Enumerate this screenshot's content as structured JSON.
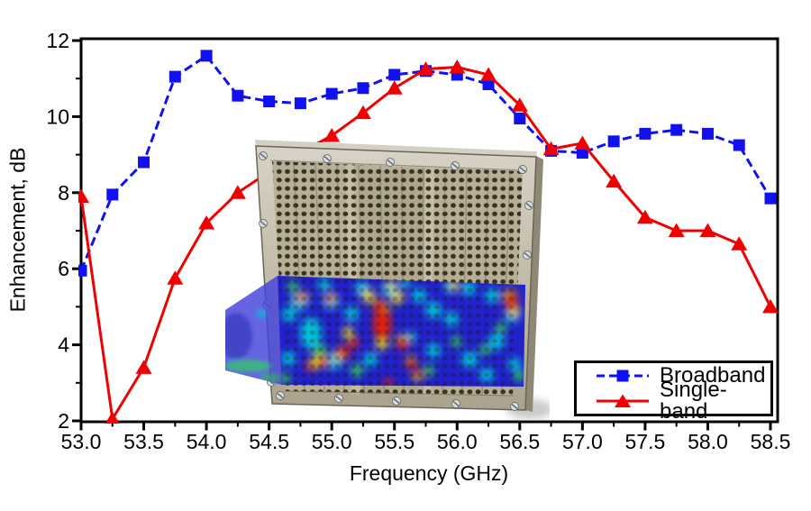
{
  "figure": {
    "background": "#ffffff",
    "text_color": "#000000"
  },
  "chart_data": {
    "type": "line",
    "title": "",
    "xlabel": "Frequency (GHz)",
    "ylabel": "Enhancement, dB",
    "xlim": [
      53.0,
      58.5
    ],
    "ylim": [
      2,
      12
    ],
    "x_major_ticks": [
      53.0,
      53.5,
      54.0,
      54.5,
      55.0,
      55.5,
      56.0,
      56.5,
      57.0,
      57.5,
      58.0,
      58.5
    ],
    "x_minor_step": 0.25,
    "y_major_ticks": [
      2,
      4,
      6,
      8,
      10,
      12
    ],
    "y_minor_step": 1,
    "grid": false,
    "frame_color": "#000000",
    "legend_position": "lower-right",
    "x": [
      53.0,
      53.25,
      53.5,
      53.75,
      54.0,
      54.25,
      54.5,
      54.75,
      55.0,
      55.25,
      55.5,
      55.75,
      56.0,
      56.25,
      56.5,
      56.75,
      57.0,
      57.25,
      57.5,
      57.75,
      58.0,
      58.25,
      58.5
    ],
    "series": [
      {
        "name": "Broadband",
        "color": "#1010F0",
        "line_style": "dashed",
        "marker": "square",
        "values": [
          5.95,
          7.95,
          8.8,
          11.05,
          11.6,
          10.55,
          10.4,
          10.35,
          10.6,
          10.75,
          11.1,
          11.2,
          11.1,
          10.85,
          9.95,
          9.1,
          9.05,
          9.35,
          9.55,
          9.65,
          9.55,
          9.25,
          7.85
        ]
      },
      {
        "name": "Single-band",
        "color": "#F00000",
        "line_style": "solid",
        "marker": "triangle-up",
        "values": [
          7.9,
          2.05,
          3.4,
          5.75,
          7.2,
          8.0,
          8.55,
          9.05,
          9.5,
          10.1,
          10.75,
          11.25,
          11.3,
          11.1,
          10.3,
          9.15,
          9.3,
          8.3,
          7.35,
          7.0,
          7.0,
          6.65,
          5.0
        ]
      }
    ]
  },
  "inset": {
    "content": "photo of perforated metal plate antenna array with simulated field-distribution color map overlaid on lower half and a translucent field plane extending to the left",
    "plate_color": "#b7ae96",
    "hole_color": "#2e2817",
    "field_palette": [
      "#1717cd",
      "#00c9d8",
      "#2ed24a",
      "#f2e51c",
      "#ee2200"
    ],
    "plane_color": "#4343dd"
  }
}
